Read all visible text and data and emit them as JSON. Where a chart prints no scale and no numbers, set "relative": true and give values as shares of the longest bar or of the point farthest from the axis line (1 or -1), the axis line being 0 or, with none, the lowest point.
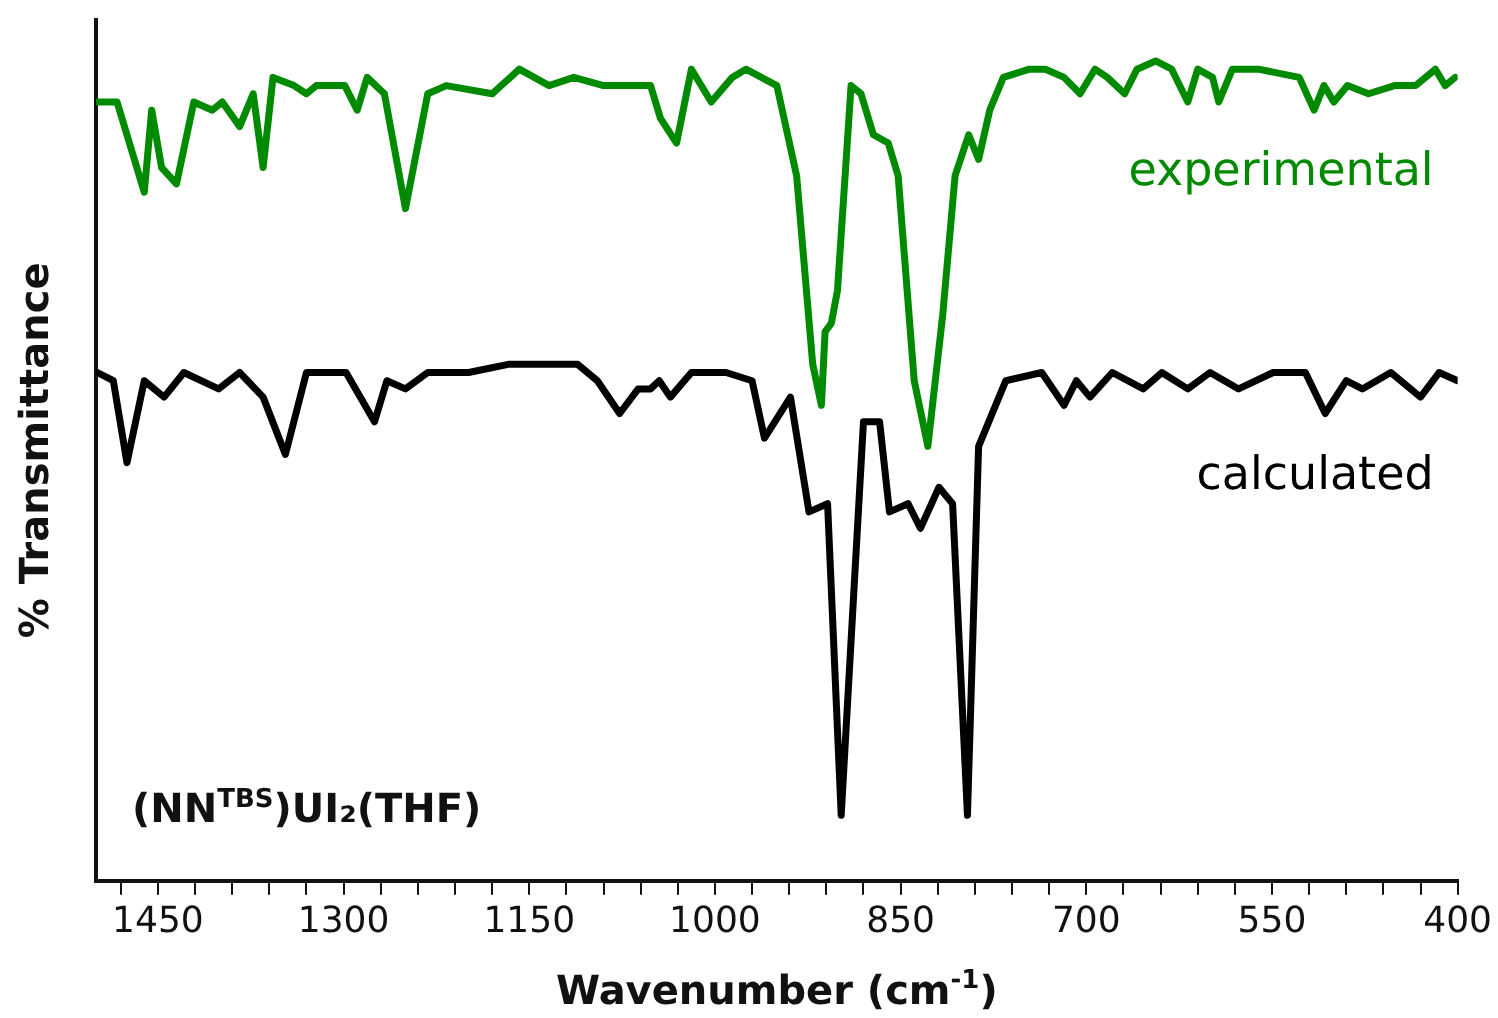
{
  "chart_data": {
    "type": "line",
    "relative": true,
    "xlabel": "Wavenumber (cm$^{-1}$)",
    "ylabel": "% Transmittance",
    "annotations": [
      "(NN$^{TBS}$)UI₂(THF)"
    ],
    "xlim": [
      1500,
      400
    ],
    "xticks": [
      {
        "value": 1480,
        "label": null
      },
      1450,
      {
        "value": 1420,
        "label": null
      },
      {
        "value": 1390,
        "label": null
      },
      {
        "value": 1360,
        "label": null
      },
      {
        "value": 1330,
        "label": null
      },
      1300,
      {
        "value": 1270,
        "label": null
      },
      {
        "value": 1240,
        "label": null
      },
      {
        "value": 1210,
        "label": null
      },
      {
        "value": 1180,
        "label": null
      },
      1150,
      {
        "value": 1120,
        "label": null
      },
      {
        "value": 1090,
        "label": null
      },
      {
        "value": 1060,
        "label": null
      },
      {
        "value": 1030,
        "label": null
      },
      1000,
      {
        "value": 970,
        "label": null
      },
      {
        "value": 940,
        "label": null
      },
      {
        "value": 910,
        "label": null
      },
      {
        "value": 880,
        "label": null
      },
      850,
      {
        "value": 820,
        "label": null
      },
      {
        "value": 790,
        "label": null
      },
      {
        "value": 760,
        "label": null
      },
      {
        "value": 730,
        "label": null
      },
      700,
      {
        "value": 670,
        "label": null
      },
      {
        "value": 640,
        "label": null
      },
      {
        "value": 610,
        "label": null
      },
      {
        "value": 580,
        "label": null
      },
      550,
      {
        "value": 520,
        "label": null
      },
      {
        "value": 490,
        "label": null
      },
      {
        "value": 460,
        "label": null
      },
      {
        "value": 430,
        "label": null
      },
      400
    ],
    "grid": false,
    "legend": false,
    "marker": "none",
    "line_style": "solid",
    "series": [
      {
        "name": "experimental",
        "color": "#008a00",
        "x": [
          1499,
          1483,
          1461,
          1455,
          1447,
          1435,
          1421,
          1406,
          1398,
          1384,
          1373,
          1365,
          1357,
          1340,
          1330,
          1322,
          1299,
          1289,
          1281,
          1267,
          1250,
          1232,
          1217,
          1180,
          1158,
          1134,
          1114,
          1090,
          1052,
          1044,
          1031,
          1019,
          1003,
          986,
          975,
          950,
          934,
          921,
          914,
          911,
          906,
          901,
          890,
          882,
          872,
          860,
          852,
          839,
          828,
          816,
          806,
          795,
          787,
          778,
          767,
          746,
          733,
          718,
          705,
          693,
          683,
          669,
          659,
          644,
          631,
          618,
          610,
          598,
          593,
          582,
          561,
          528,
          516,
          508,
          500,
          489,
          472,
          451,
          434,
          418,
          410,
          402
        ],
        "values": [
          0.95,
          0.95,
          0.84,
          0.94,
          0.87,
          0.85,
          0.95,
          0.94,
          0.95,
          0.92,
          0.96,
          0.87,
          0.98,
          0.97,
          0.96,
          0.97,
          0.97,
          0.94,
          0.98,
          0.96,
          0.82,
          0.96,
          0.97,
          0.96,
          0.99,
          0.97,
          0.98,
          0.97,
          0.97,
          0.93,
          0.9,
          0.99,
          0.95,
          0.98,
          0.99,
          0.97,
          0.86,
          0.63,
          0.58,
          0.67,
          0.68,
          0.72,
          0.97,
          0.96,
          0.91,
          0.9,
          0.86,
          0.61,
          0.53,
          0.69,
          0.86,
          0.91,
          0.88,
          0.94,
          0.98,
          0.99,
          0.99,
          0.98,
          0.96,
          0.99,
          0.98,
          0.96,
          0.99,
          1,
          0.99,
          0.95,
          0.99,
          0.98,
          0.95,
          0.99,
          0.99,
          0.98,
          0.94,
          0.97,
          0.95,
          0.97,
          0.96,
          0.97,
          0.97,
          0.99,
          0.97,
          0.98
        ]
      },
      {
        "name": "calculated",
        "color": "#000000",
        "x": [
          1499,
          1486,
          1475,
          1461,
          1445,
          1429,
          1401,
          1384,
          1365,
          1347,
          1330,
          1298,
          1275,
          1265,
          1250,
          1232,
          1199,
          1167,
          1111,
          1095,
          1077,
          1062,
          1052,
          1045,
          1036,
          1019,
          991,
          970,
          960,
          939,
          924,
          909,
          898,
          880,
          867,
          859,
          844,
          834,
          819,
          808,
          796,
          787,
          765,
          736,
          718,
          708,
          697,
          679,
          654,
          639,
          618,
          600,
          577,
          549,
          523,
          507,
          490,
          477,
          454,
          430,
          415,
          400
        ],
        "values": [
          0.62,
          0.61,
          0.51,
          0.61,
          0.59,
          0.62,
          0.6,
          0.62,
          0.59,
          0.52,
          0.62,
          0.62,
          0.56,
          0.61,
          0.6,
          0.62,
          0.62,
          0.63,
          0.63,
          0.61,
          0.57,
          0.6,
          0.6,
          0.61,
          0.59,
          0.62,
          0.62,
          0.61,
          0.54,
          0.59,
          0.45,
          0.46,
          0.08,
          0.56,
          0.56,
          0.45,
          0.46,
          0.43,
          0.48,
          0.46,
          0.08,
          0.53,
          0.61,
          0.62,
          0.58,
          0.61,
          0.59,
          0.62,
          0.6,
          0.62,
          0.6,
          0.62,
          0.6,
          0.62,
          0.62,
          0.57,
          0.61,
          0.6,
          0.62,
          0.59,
          0.62,
          0.61
        ]
      }
    ]
  }
}
